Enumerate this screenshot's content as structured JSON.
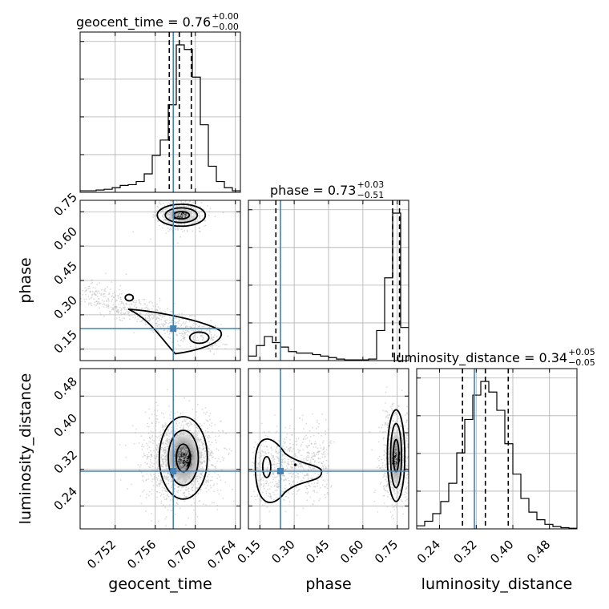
{
  "chart_data": {
    "type": "corner",
    "parameters": [
      "geocent_time",
      "phase",
      "luminosity_distance"
    ],
    "axis_labels": {
      "x": [
        "geocent_time",
        "phase",
        "luminosity_distance"
      ],
      "y": [
        "phase",
        "luminosity_distance"
      ]
    },
    "titles": [
      {
        "name": "geocent_time",
        "value": "0.76",
        "plus": "+0.00",
        "minus": "−0.00"
      },
      {
        "name": "phase",
        "value": "0.73",
        "plus": "+0.03",
        "minus": "−0.51"
      },
      {
        "name": "luminosity_distance",
        "value": "0.34",
        "plus": "+0.05",
        "minus": "−0.05"
      }
    ],
    "ranges": {
      "geocent_time": [
        0.7485,
        0.7645
      ],
      "phase": [
        0.1,
        0.8
      ],
      "luminosity_distance": [
        0.19,
        0.54
      ]
    },
    "ticks": {
      "geocent_time": [
        "0.752",
        "0.756",
        "0.760",
        "0.764"
      ],
      "phase": [
        "0.15",
        "0.30",
        "0.45",
        "0.60",
        "0.75"
      ],
      "luminosity_distance": [
        "0.24",
        "0.32",
        "0.40",
        "0.48"
      ]
    },
    "truth": {
      "geocent_time": 0.7578,
      "phase": 0.24,
      "luminosity_distance": 0.316
    },
    "quantiles": {
      "geocent_time": [
        0.7574,
        0.7584,
        0.7596
      ],
      "phase": [
        0.22,
        0.73,
        0.76
      ],
      "luminosity_distance": [
        0.29,
        0.34,
        0.39
      ]
    },
    "histograms": {
      "geocent_time": {
        "bins": [
          0.7485,
          0.7493,
          0.7501,
          0.7509,
          0.7517,
          0.7525,
          0.7533,
          0.7541,
          0.7549,
          0.7557,
          0.7565,
          0.7573,
          0.7581,
          0.7589,
          0.7597,
          0.7605,
          0.7613,
          0.7621,
          0.7629,
          0.7637,
          0.7645
        ],
        "counts": [
          0.01,
          0.01,
          0.015,
          0.02,
          0.03,
          0.045,
          0.05,
          0.07,
          0.12,
          0.24,
          0.34,
          0.57,
          0.96,
          0.93,
          0.75,
          0.44,
          0.17,
          0.07,
          0.03,
          0.01
        ]
      },
      "phase": {
        "bins": [
          0.1,
          0.135,
          0.17,
          0.205,
          0.24,
          0.275,
          0.31,
          0.345,
          0.38,
          0.415,
          0.45,
          0.485,
          0.52,
          0.555,
          0.59,
          0.625,
          0.66,
          0.695,
          0.73,
          0.765,
          0.8
        ],
        "counts": [
          0.03,
          0.1,
          0.16,
          0.12,
          0.09,
          0.06,
          0.05,
          0.05,
          0.04,
          0.03,
          0.02,
          0.01,
          0.005,
          0.005,
          0.005,
          0.01,
          0.2,
          0.55,
          0.98,
          0.22
        ]
      },
      "luminosity_distance": {
        "bins": [
          0.19,
          0.2075,
          0.225,
          0.2425,
          0.26,
          0.2775,
          0.295,
          0.3125,
          0.33,
          0.3475,
          0.365,
          0.3825,
          0.4,
          0.4175,
          0.435,
          0.4525,
          0.47,
          0.4875,
          0.505,
          0.5225,
          0.54
        ],
        "counts": [
          0.02,
          0.05,
          0.1,
          0.18,
          0.3,
          0.5,
          0.72,
          0.88,
          0.97,
          0.9,
          0.78,
          0.56,
          0.36,
          0.2,
          0.11,
          0.06,
          0.03,
          0.015,
          0.008,
          0.004
        ]
      }
    },
    "grid": true,
    "colors": {
      "truth": "#4682b4",
      "line": "#000000",
      "grid": "#b0b0b0",
      "points": "#bdbdbd"
    }
  }
}
